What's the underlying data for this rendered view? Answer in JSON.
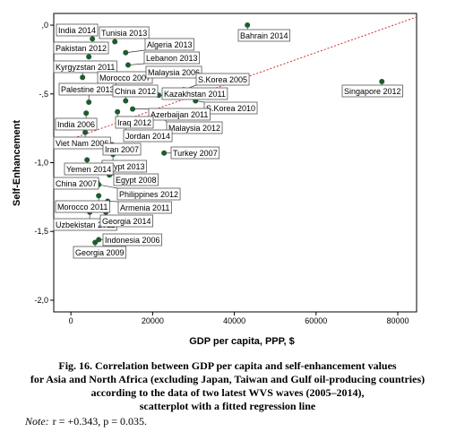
{
  "chart_data": {
    "type": "scatter",
    "xlabel": "GDP per capita, PPP, $",
    "ylabel": "Self-Enhancement",
    "color": "#1e5b2e",
    "labels": [
      "Bahrain 2014",
      "Singapore 2012",
      "India 2014",
      "Tunisia 2013",
      "Algeria 2013",
      "Pakistan 2012",
      "Lebanon 2013",
      "Kyrgyzstan 2011",
      "Morocco 2007",
      "Malaysia 2006",
      "S.Korea 2005",
      "Palestine 2013",
      "China 2012",
      "Kazakhstan 2011",
      "S.Korea 2010",
      "India 2006",
      "Azerbaijan 2011",
      "Iraq 2012",
      "Malaysia 2012",
      "Viet Nam 2006",
      "Jordan 2014",
      "Iran 2007",
      "Turkey 2007",
      "Egypt 2013",
      "Yemen 2014",
      "Egypt 2008",
      "China 2007",
      "Philippines 2012",
      "Morocco 2011",
      "Armenia 2011",
      "Uzbekistan 2011",
      "Georgia 2014",
      "Indonesia 2006",
      "Georgia 2009"
    ],
    "x": [
      43200,
      76100,
      5260,
      10750,
      13400,
      4390,
      14000,
      2850,
      9000,
      18900,
      27600,
      4390,
      13400,
      21500,
      30500,
      3730,
      15100,
      11400,
      22100,
      3500,
      13400,
      10100,
      22800,
      10300,
      3950,
      9430,
      6360,
      6800,
      6800,
      9000,
      4600,
      8550,
      6800,
      5920
    ],
    "values": [
      0.0,
      -0.41,
      -0.1,
      -0.12,
      -0.2,
      -0.23,
      -0.29,
      -0.38,
      -0.39,
      -0.38,
      -0.47,
      -0.56,
      -0.55,
      -0.51,
      -0.55,
      -0.64,
      -0.61,
      -0.63,
      -0.66,
      -0.78,
      -0.73,
      -0.87,
      -0.93,
      -0.94,
      -0.98,
      -1.09,
      -1.14,
      -1.16,
      -1.24,
      -1.28,
      -1.36,
      -1.36,
      -1.56,
      -1.58
    ],
    "regression": {
      "x": [
        -4200,
        84600
      ],
      "y": [
        -0.873,
        0.059
      ],
      "color": "#d03030"
    },
    "xlim": [
      -4200,
      84600
    ],
    "xticks": [
      0,
      20000,
      40000,
      60000,
      80000
    ],
    "ylim": [
      -2.085,
      0.085
    ],
    "yticks": [
      {
        "value": 0,
        "label": ",0"
      },
      {
        "value": -0.5,
        "label": "-,5"
      },
      {
        "value": -1,
        "label": "-1,0"
      },
      {
        "value": -1.5,
        "label": "-1,5"
      },
      {
        "value": -2,
        "label": "-2,0"
      }
    ]
  },
  "caption": [
    "Fig. 16. Correlation between GDP per capita and self-enhancement values",
    "for Asia and North Africa (excluding Japan, Taiwan and Gulf oil-producing countries)",
    "according to the data of two latest WVS waves (2005–2014),",
    "scatterplot with a fitted regression line"
  ],
  "note_label": "Note:",
  "note": "r = +0.343, p = 0.035."
}
